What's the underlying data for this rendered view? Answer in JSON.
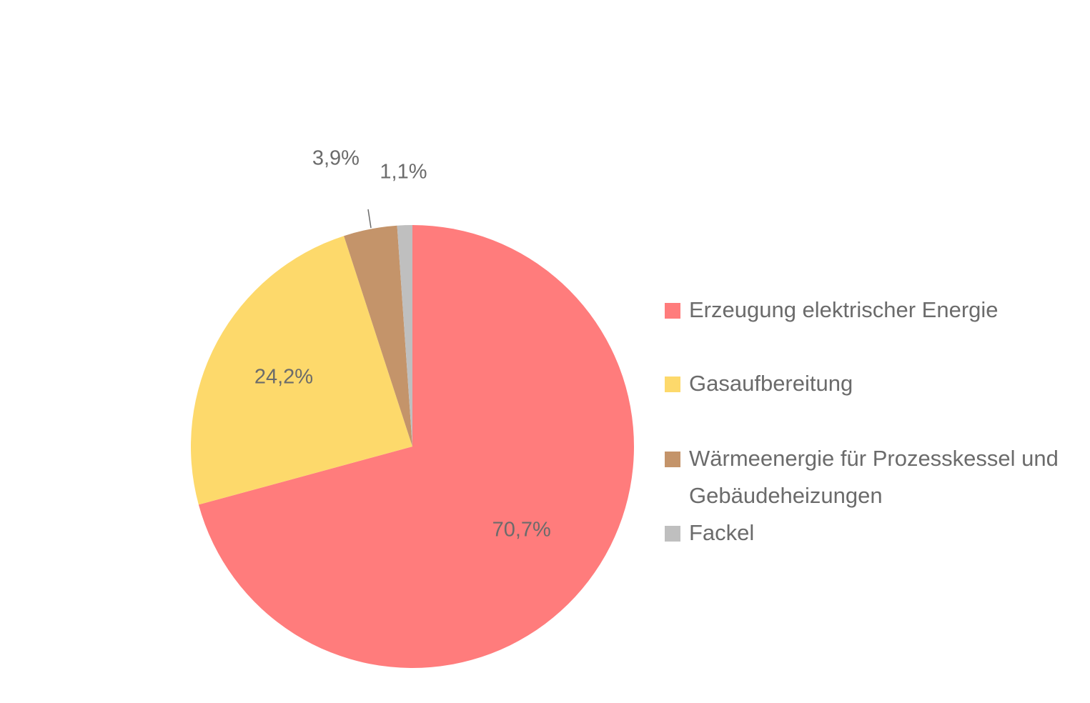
{
  "chart_data": {
    "type": "pie",
    "title": "",
    "start_angle_deg": 0,
    "direction": "clockwise",
    "slices": [
      {
        "label": "Erzeugung elektrischer Energie",
        "value": 70.7,
        "display": "70,7%",
        "color": "#FF7C7C"
      },
      {
        "label": "Gasaufbereitung",
        "value": 24.2,
        "display": "24,2%",
        "color": "#FDD96B"
      },
      {
        "label": "Wärmeenergie für Prozesskessel und Gebäudeheizungen",
        "value": 3.9,
        "display": "3,9%",
        "color": "#C4946A"
      },
      {
        "label": "Fackel",
        "value": 1.1,
        "display": "1,1%",
        "color": "#BFBFBF"
      }
    ],
    "legend_position": "right",
    "label_color": "#6B6B6B"
  }
}
